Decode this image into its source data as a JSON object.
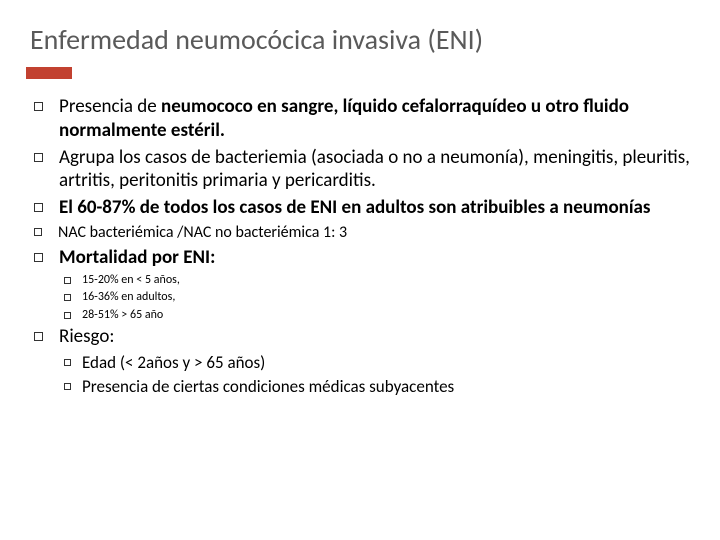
{
  "slide": {
    "title": "Enfermedad neumocócica invasiva (ENI)",
    "accent_color": "#c24130",
    "title_color": "#5a5a5a",
    "background_color": "#ffffff",
    "text_color": "#000000",
    "bullet_border_color": "#333333",
    "title_fontsize": 28,
    "body_fontsize": 19,
    "bullets": [
      {
        "level": 1,
        "parts": [
          {
            "text": "Presencia de ",
            "bold": false
          },
          {
            "text": "neumococo en sangre, líquido cefalorraquídeo u otro fluido normalmente estéril.",
            "bold": true
          }
        ]
      },
      {
        "level": 1,
        "parts": [
          {
            "text": "Agrupa los casos de bacteriemia (asociada o no a neumonía), meningitis, pleuritis, artritis, peritonitis primaria y pericarditis.",
            "bold": false
          }
        ]
      },
      {
        "level": 1,
        "parts": [
          {
            "text": "El 60-87% de todos los casos de ENI en adultos son atribuibles a neumonías",
            "bold": true
          }
        ]
      },
      {
        "level": 1,
        "size": "sm",
        "parts": [
          {
            "text": "NAC bacteriémica /NAC no bacteriémica  1: 3",
            "bold": false
          }
        ]
      },
      {
        "level": 1,
        "parts": [
          {
            "text": "Mortalidad por ENI:",
            "bold": true
          }
        ]
      },
      {
        "level": 2,
        "parts": [
          {
            "text": "15-20% en < 5 años,",
            "bold": false
          }
        ]
      },
      {
        "level": 2,
        "parts": [
          {
            "text": "16-36% en adultos,",
            "bold": false
          }
        ]
      },
      {
        "level": 2,
        "parts": [
          {
            "text": "28-51% > 65 año",
            "bold": false
          }
        ]
      },
      {
        "level": 1,
        "parts": [
          {
            "text": "Riesgo:",
            "bold": false
          }
        ]
      },
      {
        "level": 2,
        "size": "lg",
        "parts": [
          {
            "text": "Edad (< 2años y > 65 años)",
            "bold": false
          }
        ]
      },
      {
        "level": 2,
        "size": "lg",
        "parts": [
          {
            "text": "Presencia de ciertas condiciones médicas subyacentes",
            "bold": false
          }
        ]
      }
    ]
  }
}
